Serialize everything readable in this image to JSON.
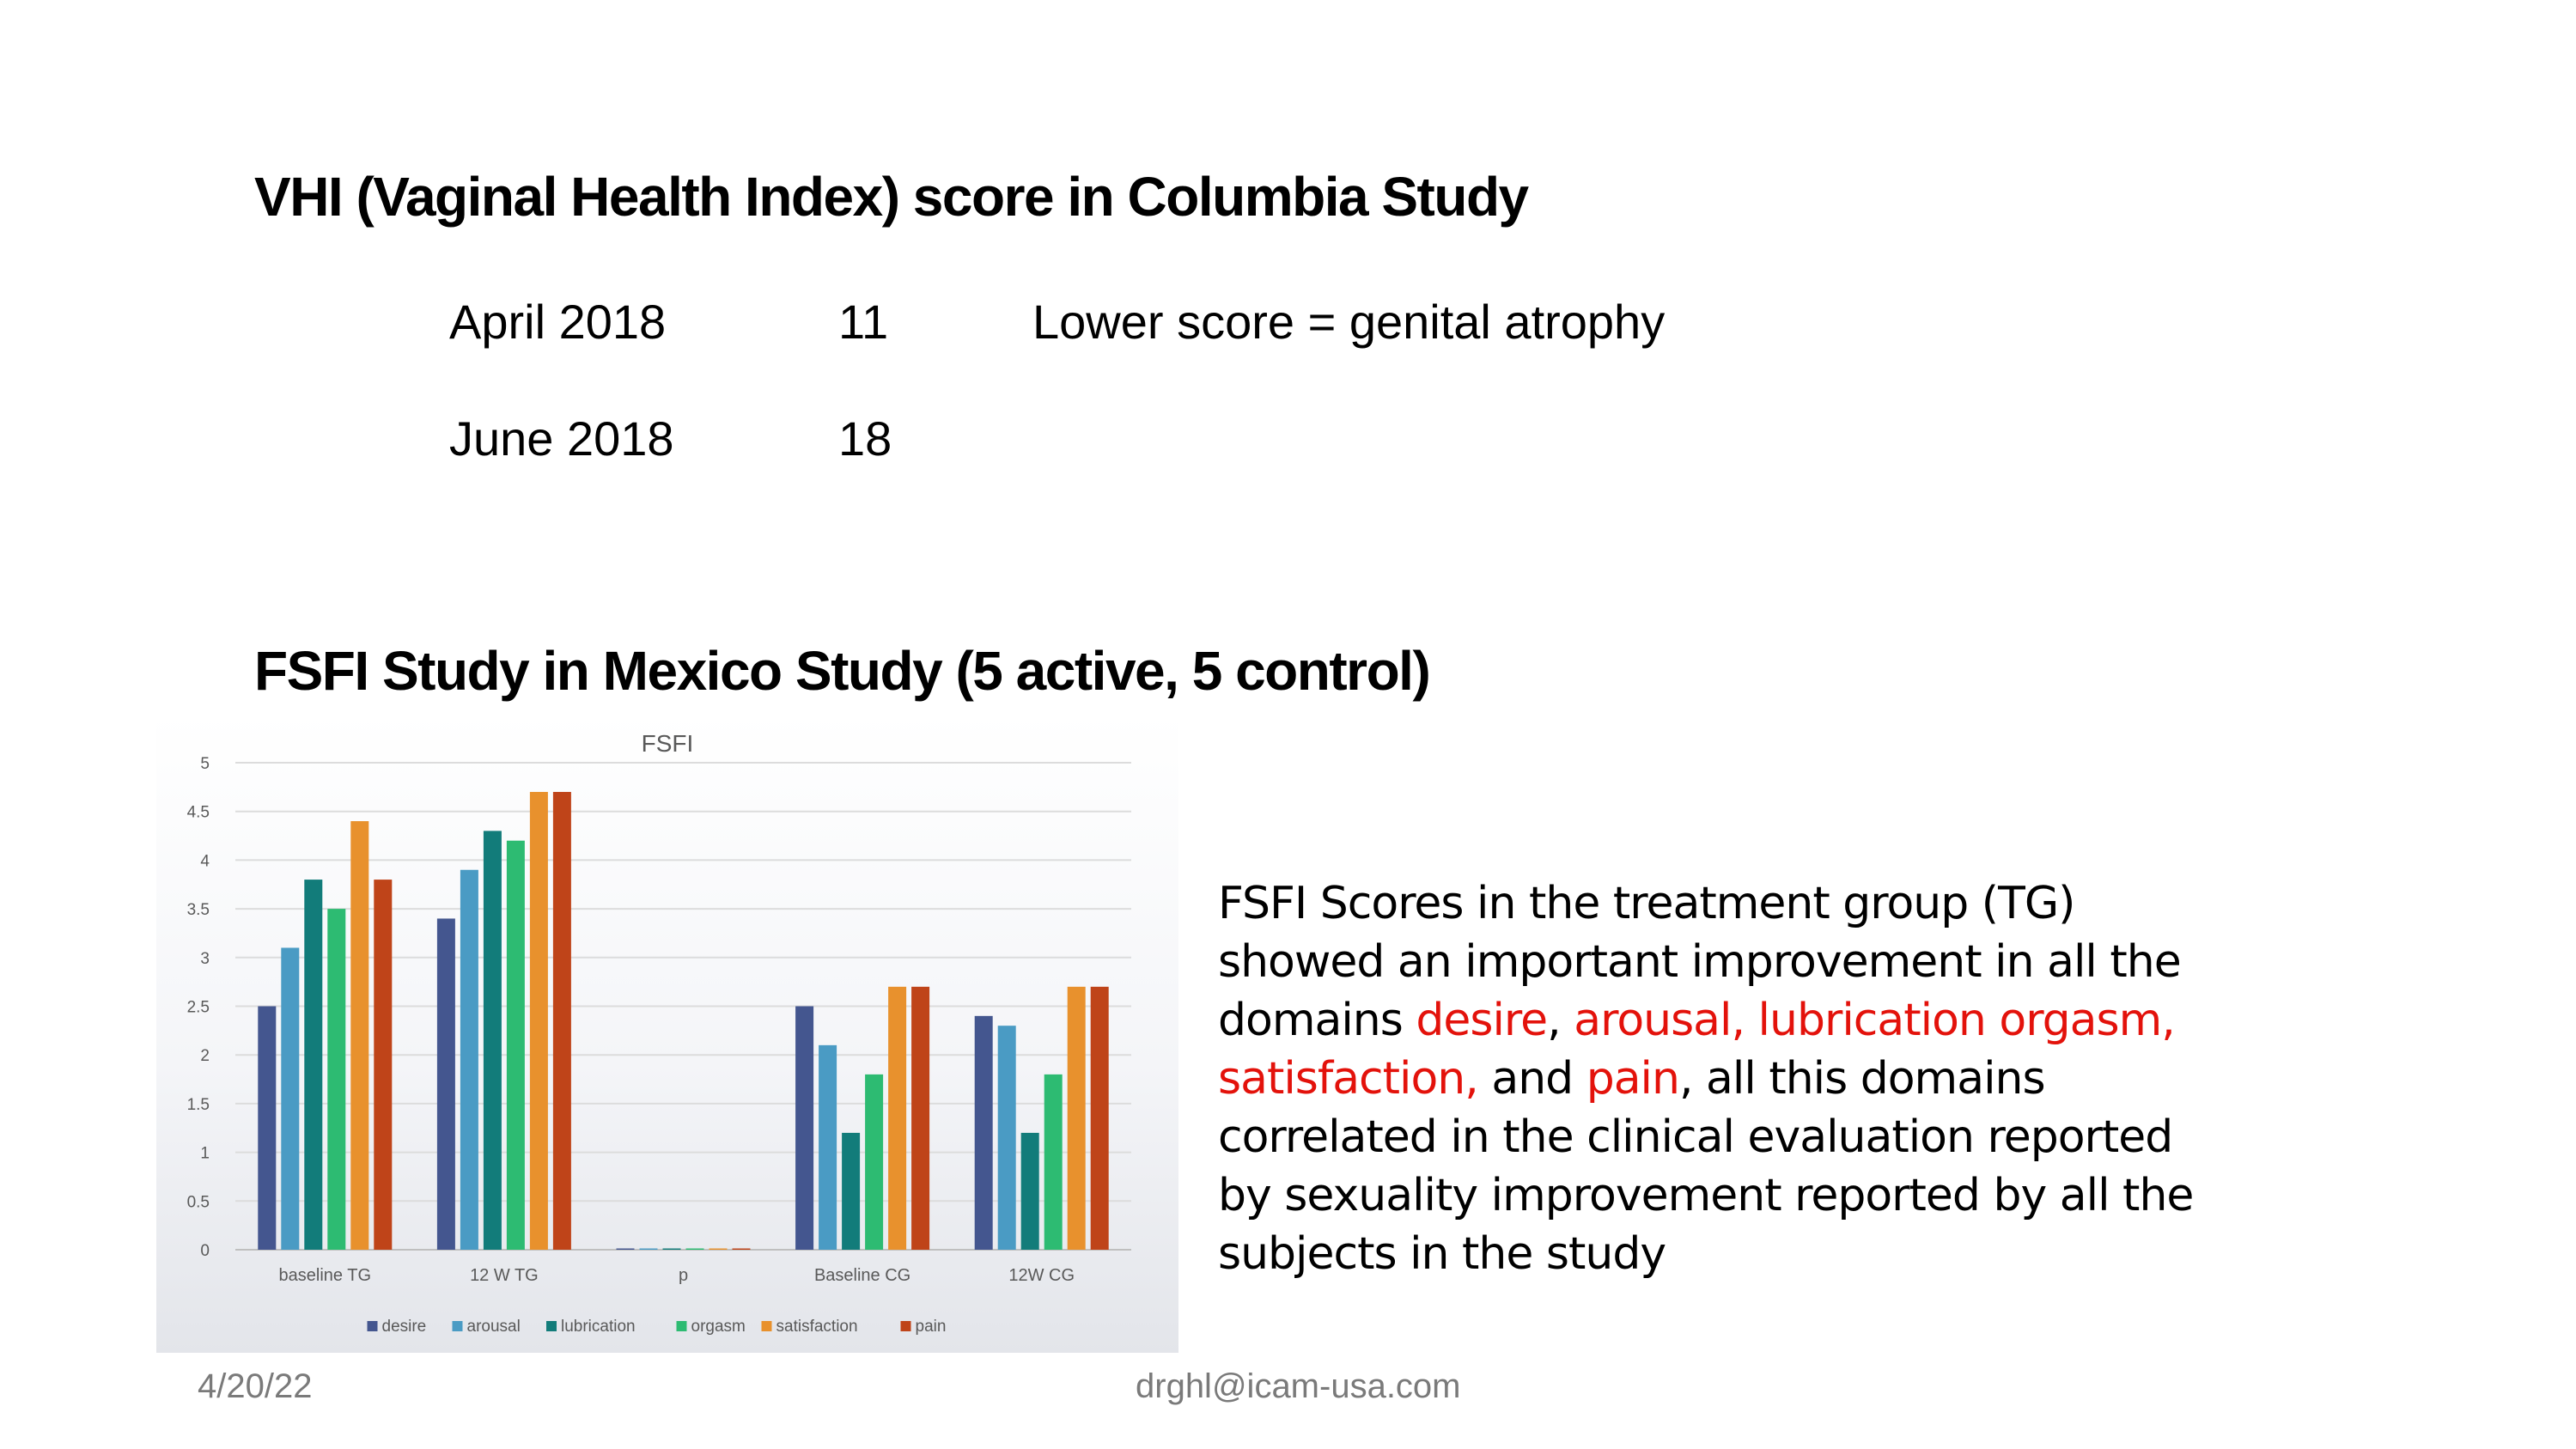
{
  "slide": {
    "vhi_title": "VHI (Vaginal Health Index) score in Columbia Study",
    "vhi_rows": [
      {
        "date": "April 2018",
        "score": "11",
        "note": "Lower score = genital atrophy"
      },
      {
        "date": "June 2018",
        "score": "18",
        "note": ""
      }
    ],
    "fsfi_title": "FSFI Study in Mexico Study (5 active, 5 control)",
    "footer_date": "4/20/22",
    "footer_email": "drghl@icam-usa.com"
  },
  "body_text": {
    "seg1": "FSFI Scores in the treatment group (TG) showed an important improvement in all the domains ",
    "hl1": "desire",
    "seg2": ", ",
    "hl2": "arousal, lubrication orgasm, satisfaction,",
    "seg3": " and ",
    "hl3": "pain",
    "seg4": ", all this domains correlated in the clinical evaluation reported by sexuality improvement reported by all the subjects in the study",
    "highlight_color": "#e3120b"
  },
  "chart_data": {
    "type": "bar",
    "title": "FSFI",
    "xlabel": "",
    "ylabel": "",
    "ylim": [
      0,
      5
    ],
    "yticks": [
      0,
      0.5,
      1,
      1.5,
      2,
      2.5,
      3,
      3.5,
      4,
      4.5,
      5
    ],
    "ytick_labels": [
      "0",
      "0.5",
      "1",
      "1.5",
      "2",
      "2.5",
      "3",
      "3.5",
      "4",
      "4.5",
      "5"
    ],
    "categories": [
      "baseline TG",
      "12 W TG",
      "p",
      "Baseline CG",
      "12W CG"
    ],
    "grid": true,
    "legend": "bottom",
    "series": [
      {
        "name": "desire",
        "color": "#44568f",
        "values": [
          2.5,
          3.4,
          0.01,
          2.5,
          2.4
        ]
      },
      {
        "name": "arousal",
        "color": "#4a9bc4",
        "values": [
          3.1,
          3.9,
          0.01,
          2.1,
          2.3
        ]
      },
      {
        "name": "lubrication",
        "color": "#127c7a",
        "values": [
          3.8,
          4.3,
          0.01,
          1.2,
          1.2
        ]
      },
      {
        "name": "orgasm",
        "color": "#2dbb72",
        "values": [
          3.5,
          4.2,
          0.01,
          1.8,
          1.8
        ]
      },
      {
        "name": "satisfaction",
        "color": "#e8912d",
        "values": [
          4.4,
          4.7,
          0.01,
          2.7,
          2.7
        ]
      },
      {
        "name": "pain",
        "color": "#bf4419",
        "values": [
          3.8,
          4.7,
          0.01,
          2.7,
          2.7
        ]
      }
    ]
  }
}
